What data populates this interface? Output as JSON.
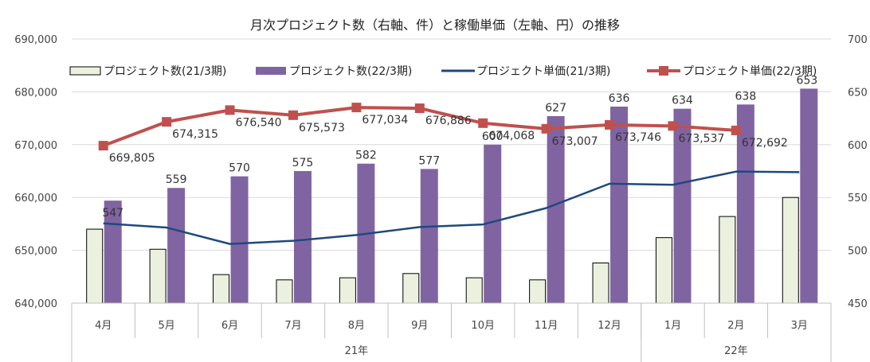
{
  "chart_data": {
    "type": "bar+line",
    "title": "月次プロジェクト数（右軸、件）と稼働単価（左軸、円）の推移",
    "categories": [
      "4月",
      "5月",
      "6月",
      "7月",
      "8月",
      "9月",
      "10月",
      "11月",
      "12月",
      "1月",
      "2月",
      "3月"
    ],
    "groups": [
      {
        "label": "21年",
        "count": 9
      },
      {
        "label": "22年",
        "count": 3
      }
    ],
    "left_axis": {
      "min": 640000,
      "max": 690000,
      "ticks": [
        "640,000",
        "650,000",
        "660,000",
        "670,000",
        "680,000",
        "690,000"
      ]
    },
    "right_axis": {
      "min": 450,
      "max": 700,
      "ticks": [
        "450",
        "500",
        "550",
        "600",
        "650",
        "700"
      ]
    },
    "bar_series": [
      {
        "name": "プロジェクト数(21/3期)",
        "axis": "right",
        "color": "#EBF1DE",
        "stroke": "#000000",
        "values": [
          520,
          501,
          477,
          472,
          474,
          478,
          474,
          472,
          488,
          512,
          532,
          550
        ],
        "labels": []
      },
      {
        "name": "プロジェクト数(22/3期)",
        "axis": "right",
        "color": "#8064A2",
        "values": [
          547,
          559,
          570,
          575,
          582,
          577,
          600,
          627,
          636,
          634,
          638,
          653
        ],
        "labels": [
          "547",
          "559",
          "570",
          "575",
          "582",
          "577",
          "600",
          "627",
          "636",
          "634",
          "638",
          "653"
        ]
      }
    ],
    "line_series": [
      {
        "name": "プロジェクト単価(21/3期)",
        "axis": "left",
        "color": "#1F497D",
        "marker": "none",
        "values": [
          655100,
          654300,
          651200,
          651800,
          652900,
          654400,
          654900,
          658000,
          662600,
          662400,
          664900,
          664800
        ]
      },
      {
        "name": "プロジェクト単価(22/3期)",
        "axis": "left",
        "color": "#C0504D",
        "marker": "square",
        "values": [
          669805,
          674315,
          676540,
          675573,
          677034,
          676886,
          674068,
          673007,
          673746,
          673537,
          672692,
          null
        ],
        "labels": [
          "669,805",
          "674,315",
          "676,540",
          "675,573",
          "677,034",
          "676,886",
          "674,068",
          "673,007",
          "673,746",
          "673,537",
          "672,692",
          ""
        ]
      }
    ],
    "grid": true,
    "legend_position": "top"
  }
}
